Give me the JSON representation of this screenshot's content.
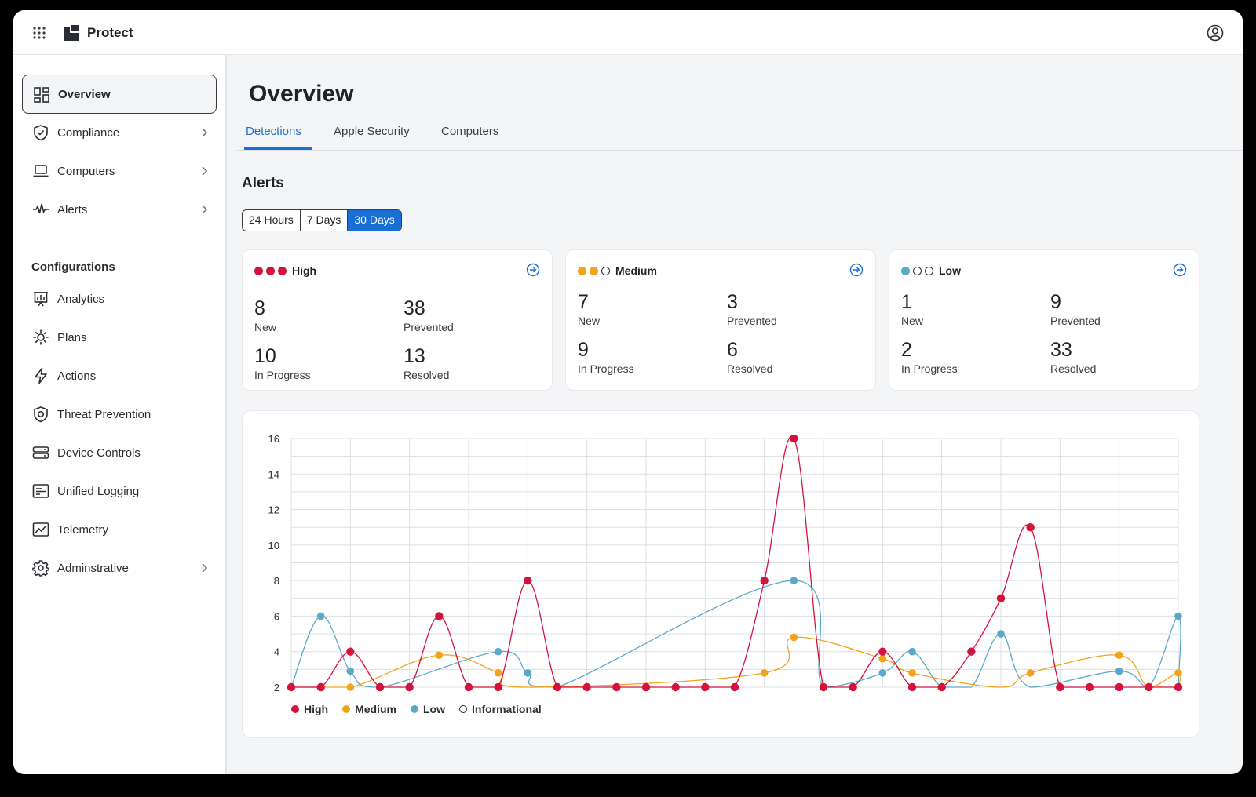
{
  "app": {
    "name": "Protect",
    "icons": [
      "apps-grid-icon",
      "protect-logo-icon",
      "user-profile-icon"
    ]
  },
  "sidebar": {
    "items": [
      {
        "label": "Overview",
        "icon": "overview-icon",
        "active": true
      },
      {
        "label": "Compliance",
        "icon": "shield-check-icon",
        "chevron": true
      },
      {
        "label": "Computers",
        "icon": "laptop-icon",
        "chevron": true
      },
      {
        "label": "Alerts",
        "icon": "pulse-icon",
        "chevron": true
      }
    ],
    "section_title": "Configurations",
    "config_items": [
      {
        "label": "Analytics",
        "icon": "analytics-icon"
      },
      {
        "label": "Plans",
        "icon": "plans-gear-icon"
      },
      {
        "label": "Actions",
        "icon": "lightning-icon"
      },
      {
        "label": "Threat Prevention",
        "icon": "threat-shield-icon"
      },
      {
        "label": "Device Controls",
        "icon": "drive-icon"
      },
      {
        "label": "Unified Logging",
        "icon": "logging-icon"
      },
      {
        "label": "Telemetry",
        "icon": "telemetry-icon"
      },
      {
        "label": "Adminstrative",
        "icon": "settings-gear-icon",
        "chevron": true
      }
    ]
  },
  "main": {
    "title": "Overview",
    "tabs": [
      {
        "label": "Detections",
        "active": true
      },
      {
        "label": "Apple Security"
      },
      {
        "label": "Computers"
      }
    ],
    "alerts_title": "Alerts",
    "ranges": [
      {
        "label": "24 Hours"
      },
      {
        "label": "7 Days"
      },
      {
        "label": "30 Days",
        "active": true
      }
    ]
  },
  "cards": [
    {
      "severity": "High",
      "dots": [
        "#d4133d",
        "#d4133d",
        "#d4133d"
      ],
      "stats": [
        {
          "num": "8",
          "cap": "New"
        },
        {
          "num": "38",
          "cap": "Prevented"
        },
        {
          "num": "10",
          "cap": "In Progress"
        },
        {
          "num": "13",
          "cap": "Resolved"
        }
      ]
    },
    {
      "severity": "Medium",
      "dots": [
        "#f2a31b",
        "#f2a31b",
        "hollow"
      ],
      "stats": [
        {
          "num": "7",
          "cap": "New"
        },
        {
          "num": "3",
          "cap": "Prevented"
        },
        {
          "num": "9",
          "cap": "In Progress"
        },
        {
          "num": "6",
          "cap": "Resolved"
        }
      ]
    },
    {
      "severity": "Low",
      "dots": [
        "#5aa9c9",
        "hollow",
        "hollow"
      ],
      "stats": [
        {
          "num": "1",
          "cap": "New"
        },
        {
          "num": "9",
          "cap": "Prevented"
        },
        {
          "num": "2",
          "cap": "In Progress"
        },
        {
          "num": "33",
          "cap": "Resolved"
        }
      ]
    }
  ],
  "colors": {
    "accent": "#1a6fd4",
    "high": "#d4133d",
    "medium": "#f2a31b",
    "low": "#5aa9c9"
  },
  "chart_data": {
    "type": "line",
    "x": [
      1,
      2,
      3,
      4,
      5,
      6,
      7,
      8,
      9,
      10,
      11,
      12,
      13,
      14,
      15,
      16,
      17,
      18,
      19,
      20,
      21,
      22,
      23,
      24,
      25,
      26,
      27,
      28,
      29,
      30,
      31
    ],
    "ylim": [
      2,
      16
    ],
    "yticks": [
      2,
      4,
      6,
      8,
      10,
      12,
      14,
      16
    ],
    "grid": true,
    "legend_position": "bottom-left",
    "series": [
      {
        "name": "High",
        "color": "#d4133d",
        "points": [
          [
            1,
            2
          ],
          [
            2,
            2
          ],
          [
            3,
            4
          ],
          [
            4,
            2
          ],
          [
            5,
            2
          ],
          [
            6,
            6
          ],
          [
            7,
            2
          ],
          [
            8,
            2
          ],
          [
            9,
            8
          ],
          [
            10,
            2
          ],
          [
            11,
            2
          ],
          [
            12,
            2
          ],
          [
            13,
            2
          ],
          [
            14,
            2
          ],
          [
            15,
            2
          ],
          [
            16,
            2
          ],
          [
            17,
            8
          ],
          [
            18,
            16
          ],
          [
            19,
            2
          ],
          [
            20,
            2
          ],
          [
            21,
            4
          ],
          [
            22,
            2
          ],
          [
            23,
            2
          ],
          [
            24,
            4
          ],
          [
            25,
            7
          ],
          [
            26,
            11
          ],
          [
            27,
            2
          ],
          [
            28,
            2
          ],
          [
            29,
            2
          ],
          [
            30,
            2
          ],
          [
            31,
            2
          ]
        ]
      },
      {
        "name": "Medium",
        "color": "#f2a31b",
        "points": [
          [
            1,
            2
          ],
          [
            3,
            2
          ],
          [
            6,
            3.8
          ],
          [
            8,
            2.8
          ],
          [
            9,
            2
          ],
          [
            17,
            2.8
          ],
          [
            18,
            4.8
          ],
          [
            21,
            3.6
          ],
          [
            22,
            2.8
          ],
          [
            25,
            2
          ],
          [
            26,
            2.8
          ],
          [
            29,
            3.8
          ],
          [
            30,
            2
          ],
          [
            31,
            2.8
          ],
          [
            32,
            2
          ]
        ]
      },
      {
        "name": "Low",
        "color": "#5aa9c9",
        "points": [
          [
            1,
            2
          ],
          [
            2,
            6
          ],
          [
            3,
            2.9
          ],
          [
            4,
            2
          ],
          [
            8,
            4
          ],
          [
            9,
            2.8
          ],
          [
            10,
            2
          ],
          [
            18,
            8
          ],
          [
            19,
            2
          ],
          [
            21,
            2.8
          ],
          [
            22,
            4
          ],
          [
            23,
            2
          ],
          [
            24,
            2
          ],
          [
            25,
            5
          ],
          [
            26,
            2
          ],
          [
            29,
            2.9
          ],
          [
            30,
            2
          ],
          [
            31,
            6
          ],
          [
            32,
            2
          ]
        ]
      },
      {
        "name": "Informational",
        "color": "hollow",
        "points": []
      }
    ]
  }
}
